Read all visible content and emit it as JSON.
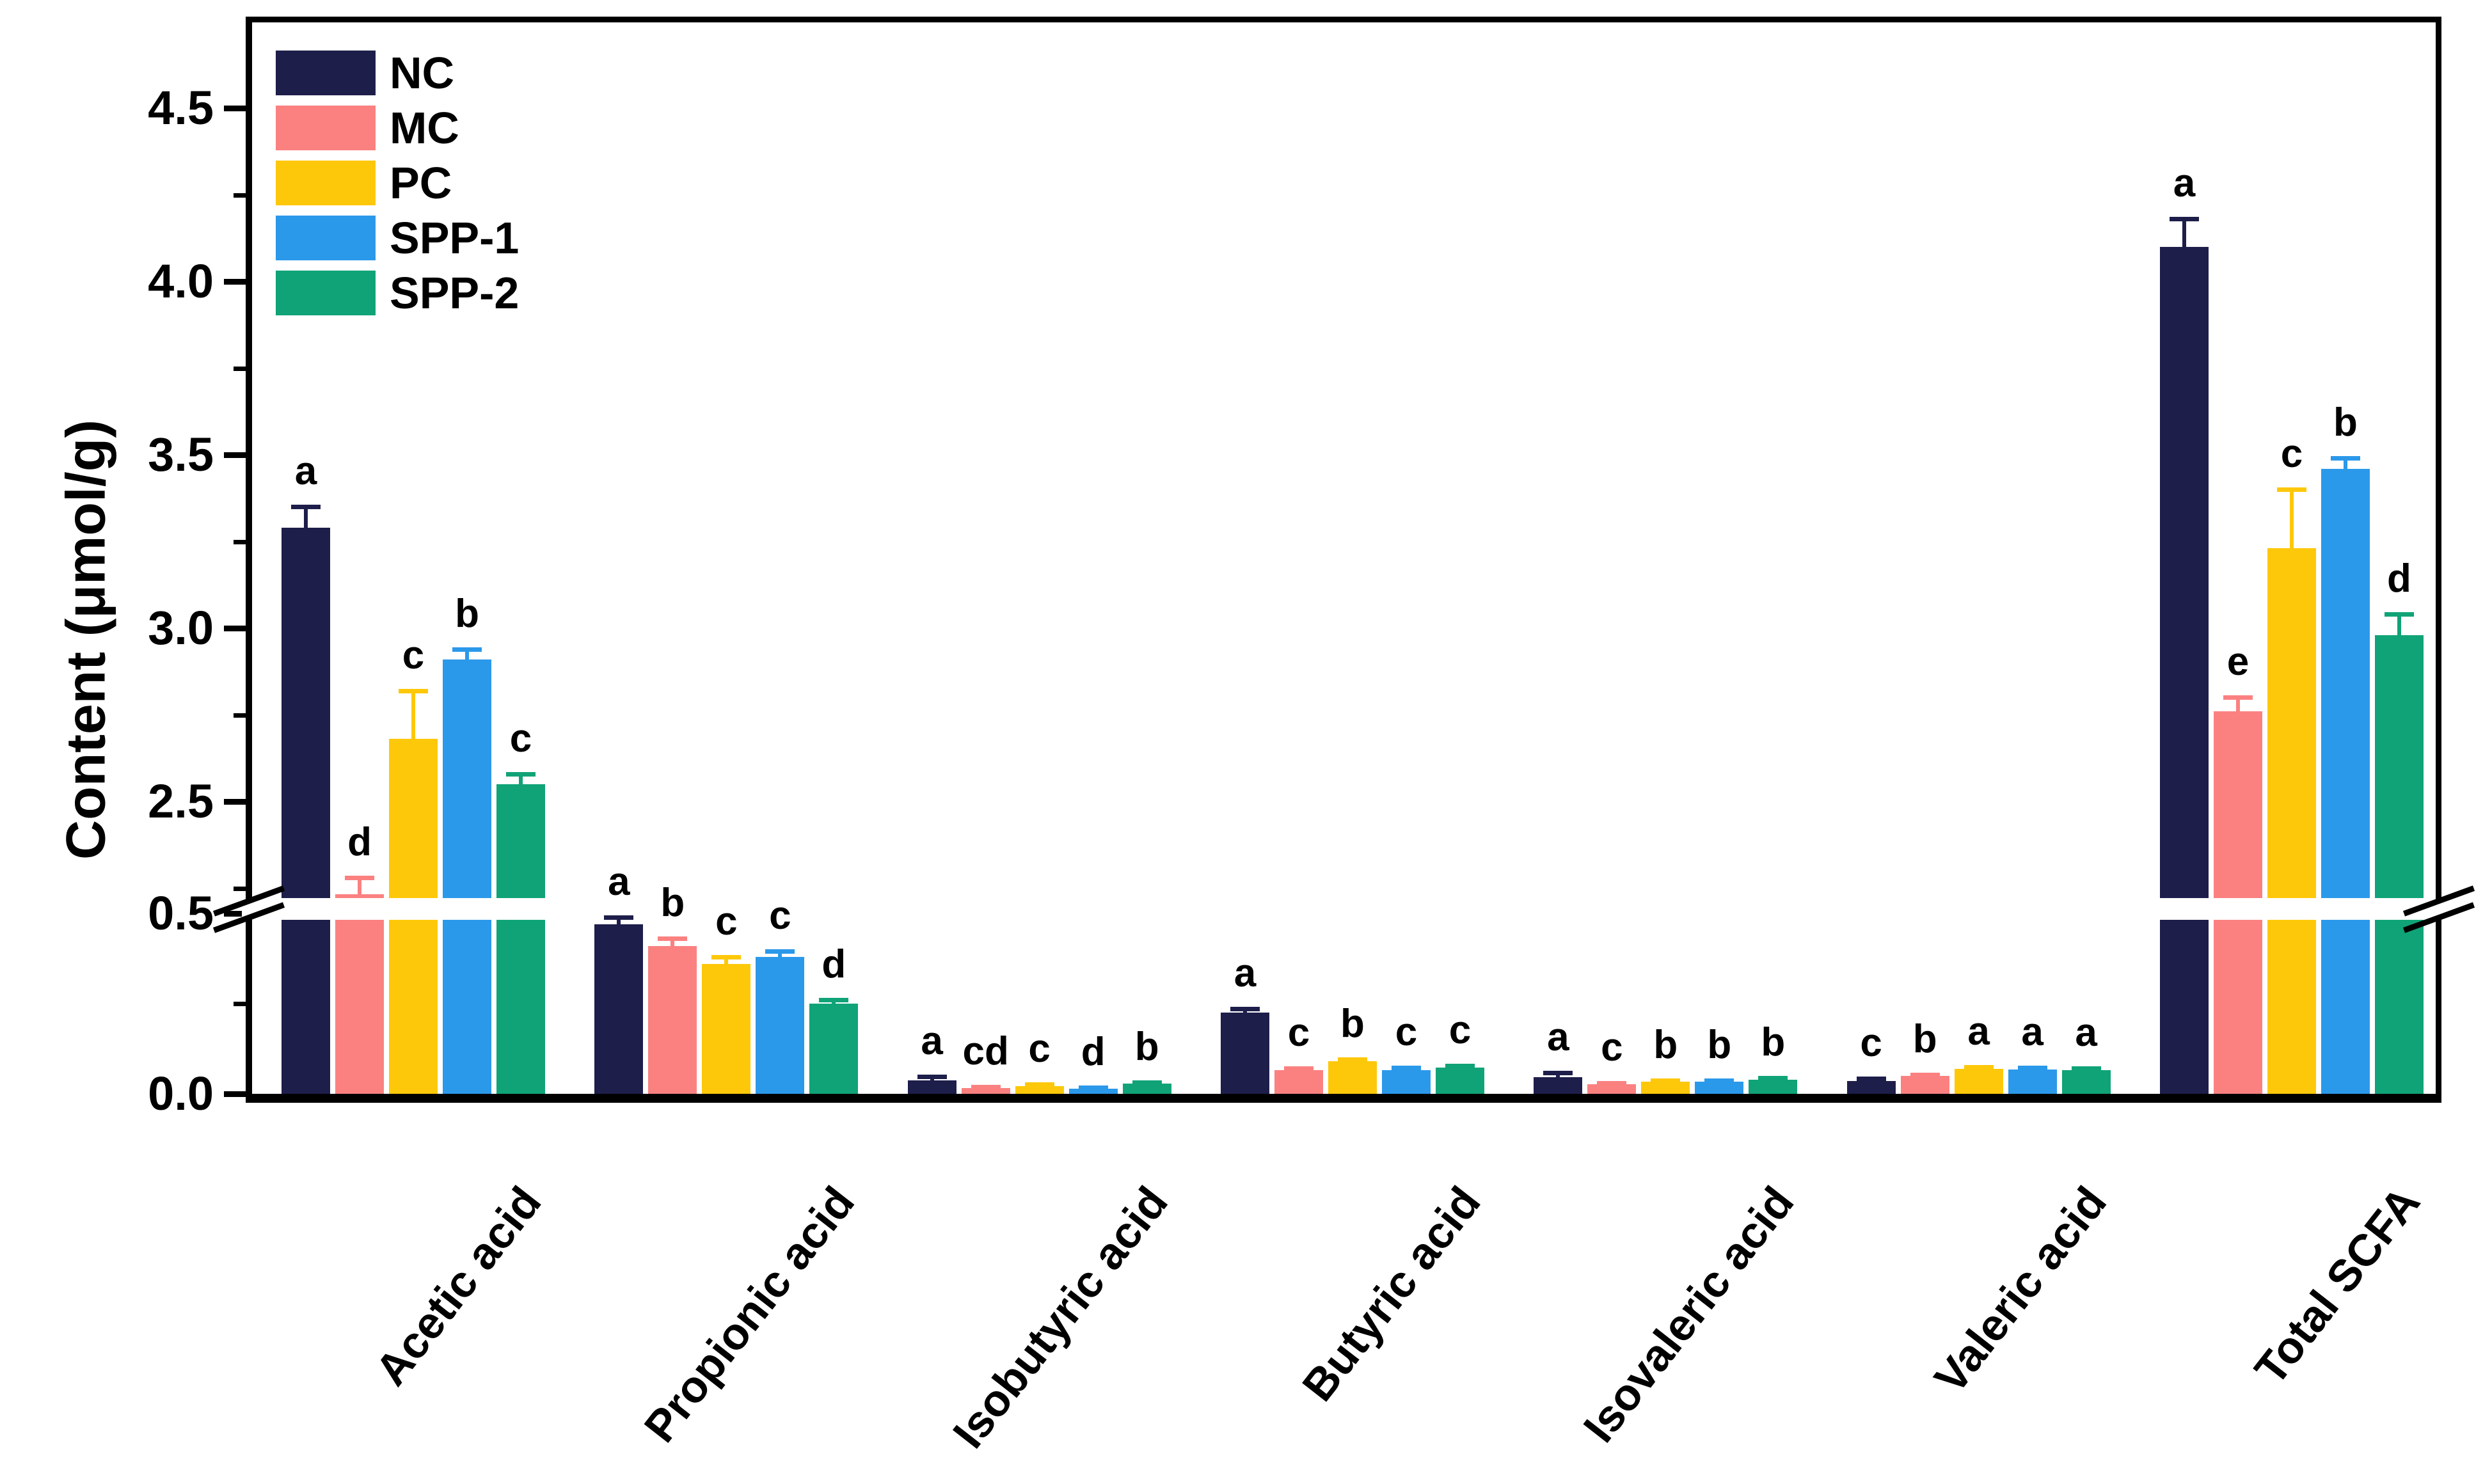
{
  "chart_data": {
    "type": "bar",
    "title": "",
    "ylabel": "Content (μmol/g)",
    "xlabel": "",
    "grid": false,
    "legend_position": "top-left-inside",
    "categories": [
      "Acetic acid",
      "Propionic acid",
      "Isobutyric acid",
      "Butyric acid",
      "Isovaleric acid",
      "Valeric acid",
      "Total SCFA"
    ],
    "series": [
      {
        "name": "NC",
        "color": "#1e1e4b",
        "values": [
          3.29,
          0.47,
          0.038,
          0.225,
          0.046,
          0.036,
          4.1
        ],
        "errors": [
          0.06,
          0.02,
          0.01,
          0.01,
          0.012,
          0.006,
          0.08
        ],
        "letters": [
          "a",
          "a",
          "a",
          "a",
          "a",
          "c",
          "a"
        ]
      },
      {
        "name": "MC",
        "color": "#fb8181",
        "values": [
          2.22,
          0.41,
          0.016,
          0.065,
          0.026,
          0.049,
          2.76
        ],
        "errors": [
          0.06,
          0.02,
          0.004,
          0.006,
          0.005,
          0.005,
          0.04
        ],
        "letters": [
          "d",
          "b",
          "cd",
          "c",
          "c",
          "b",
          "e"
        ]
      },
      {
        "name": "PC",
        "color": "#fec80a",
        "values": [
          2.68,
          0.36,
          0.022,
          0.09,
          0.033,
          0.069,
          3.23
        ],
        "errors": [
          0.14,
          0.02,
          0.005,
          0.006,
          0.005,
          0.005,
          0.17
        ],
        "letters": [
          "c",
          "c",
          "c",
          "b",
          "b",
          "a",
          "c"
        ]
      },
      {
        "name": "SPP-1",
        "color": "#2b99ea",
        "values": [
          2.91,
          0.38,
          0.014,
          0.066,
          0.033,
          0.067,
          3.46
        ],
        "errors": [
          0.03,
          0.015,
          0.004,
          0.006,
          0.005,
          0.005,
          0.03
        ],
        "letters": [
          "b",
          "c",
          "d",
          "c",
          "b",
          "a",
          "b"
        ]
      },
      {
        "name": "SPP-2",
        "color": "#10a377",
        "values": [
          2.55,
          0.25,
          0.028,
          0.072,
          0.039,
          0.066,
          2.98
        ],
        "errors": [
          0.03,
          0.01,
          0.004,
          0.006,
          0.006,
          0.005,
          0.06
        ],
        "letters": [
          "c",
          "d",
          "b",
          "c",
          "b",
          "a",
          "d"
        ]
      }
    ],
    "y_axis": {
      "upper_tick_labels": [
        "2.5",
        "3.0",
        "3.5",
        "4.0",
        "4.5"
      ],
      "lower_tick_labels": [
        "0.0",
        "0.5"
      ],
      "axis_break": {
        "from": 0.5,
        "to": 2.25
      },
      "ylim_lower": [
        0,
        0.5
      ],
      "ylim_upper": [
        2.25,
        4.75
      ]
    }
  }
}
